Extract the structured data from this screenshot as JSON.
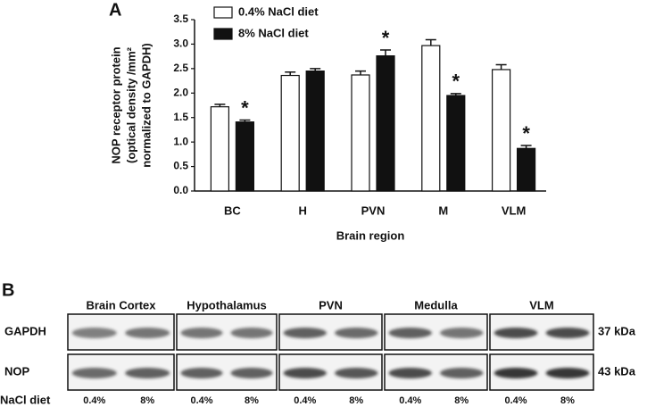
{
  "chart_data": {
    "type": "bar",
    "panel": "A",
    "ylabel": [
      "NOP receptor protein",
      "(optical density /mm²",
      "normalized to GAPDH)"
    ],
    "xlabel": "Brain region",
    "categories": [
      "BC",
      "H",
      "PVN",
      "M",
      "VLM"
    ],
    "series": [
      {
        "name": "0.4% NaCl diet",
        "color": "#ffffff",
        "values": [
          1.72,
          2.36,
          2.37,
          2.97,
          2.48
        ],
        "errors": [
          0.05,
          0.07,
          0.08,
          0.12,
          0.1
        ]
      },
      {
        "name": "8% NaCl diet",
        "color": "#111111",
        "values": [
          1.41,
          2.45,
          2.76,
          1.95,
          0.87
        ],
        "errors": [
          0.04,
          0.05,
          0.12,
          0.04,
          0.06
        ],
        "markers": [
          "*",
          null,
          "*",
          "*",
          "*"
        ]
      }
    ],
    "ylim": [
      0,
      3.5
    ],
    "yticks": [
      {
        "value": 0,
        "label": "0.0"
      },
      0.5,
      {
        "value": 1,
        "label": "1.0"
      },
      1.5,
      {
        "value": 2,
        "label": "2.0"
      },
      2.5,
      {
        "value": 3,
        "label": "3.0"
      },
      3.5
    ],
    "grid": false
  },
  "blot": {
    "panel": "B",
    "regions": [
      "Brain Cortex",
      "Hypothalamus",
      "PVN",
      "Medulla",
      "VLM"
    ],
    "rows": [
      {
        "name": "GAPDH",
        "size": "37 kDa"
      },
      {
        "name": "NOP",
        "size": "43 kDa"
      }
    ],
    "lane_caption": "NaCl diet",
    "lanes": [
      "0.4%",
      "8%"
    ]
  }
}
